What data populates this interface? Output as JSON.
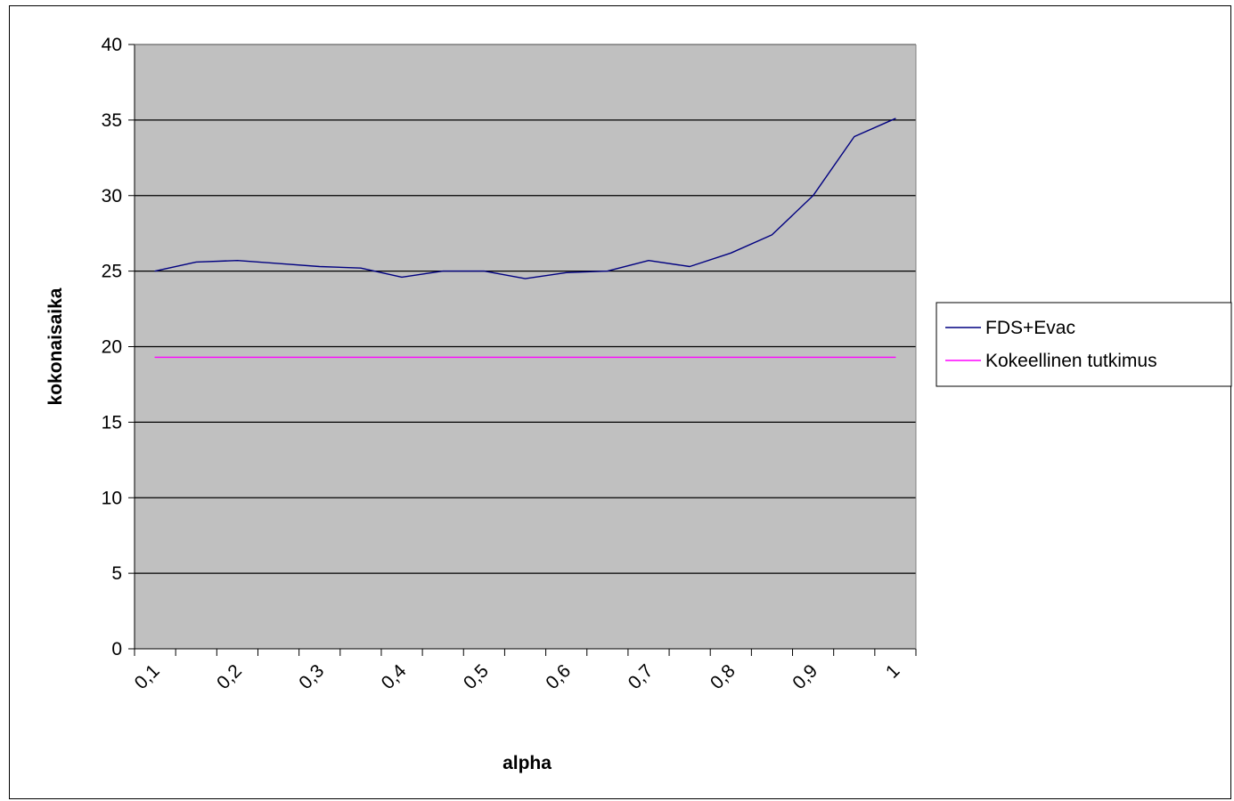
{
  "chart_data": {
    "type": "line",
    "title": "",
    "xlabel": "alpha",
    "ylabel": "kokonaisaika",
    "categories": [
      "0,1",
      "",
      "0,2",
      "",
      "0,3",
      "",
      "0,4",
      "",
      "0,5",
      "",
      "0,6",
      "",
      "0,7",
      "",
      "0,8",
      "",
      "0,9",
      "",
      "1"
    ],
    "ylim": [
      0,
      40
    ],
    "yticks": [
      "0",
      "5",
      "10",
      "15",
      "20",
      "25",
      "30",
      "35",
      "40"
    ],
    "grid": true,
    "legend_position": "right",
    "plot_background": "#c0c0c0",
    "series": [
      {
        "name": "FDS+Evac",
        "color": "#000080",
        "values": [
          25.0,
          25.6,
          25.7,
          25.5,
          25.3,
          25.2,
          24.6,
          25.0,
          25.0,
          24.5,
          24.9,
          25.0,
          25.7,
          25.3,
          26.2,
          27.4,
          30.0,
          33.9,
          35.1
        ]
      },
      {
        "name": "Kokeellinen tutkimus",
        "color": "#ff00ff",
        "values": [
          19.3,
          19.3,
          19.3,
          19.3,
          19.3,
          19.3,
          19.3,
          19.3,
          19.3,
          19.3,
          19.3,
          19.3,
          19.3,
          19.3,
          19.3,
          19.3,
          19.3,
          19.3,
          19.3
        ]
      }
    ]
  }
}
